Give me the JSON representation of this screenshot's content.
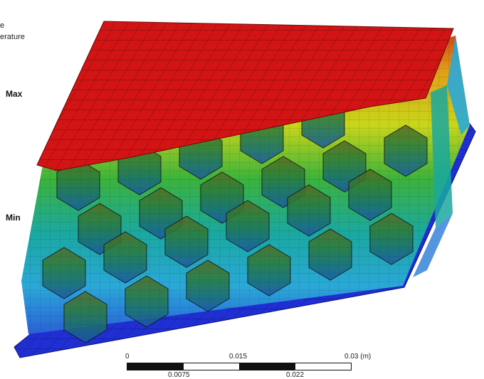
{
  "legend": {
    "title_line1": "e",
    "title_line2": "erature",
    "max_label": "Max",
    "min_label": "Min"
  },
  "scale_bar": {
    "top_labels": [
      "0",
      "0.015",
      "0.03 (m)"
    ],
    "bottom_labels": [
      "0.0075",
      "0.022"
    ]
  },
  "colors": {
    "hot": "#d21414",
    "warm": "#e0a016",
    "mid_hot": "#c8d61a",
    "mid": "#3bb33b",
    "mid_cool": "#1aa8a0",
    "cool": "#2aa8d8",
    "cold": "#1f2fd4"
  },
  "model": {
    "description_icon": "honeycomb-heat-sink-icon"
  }
}
